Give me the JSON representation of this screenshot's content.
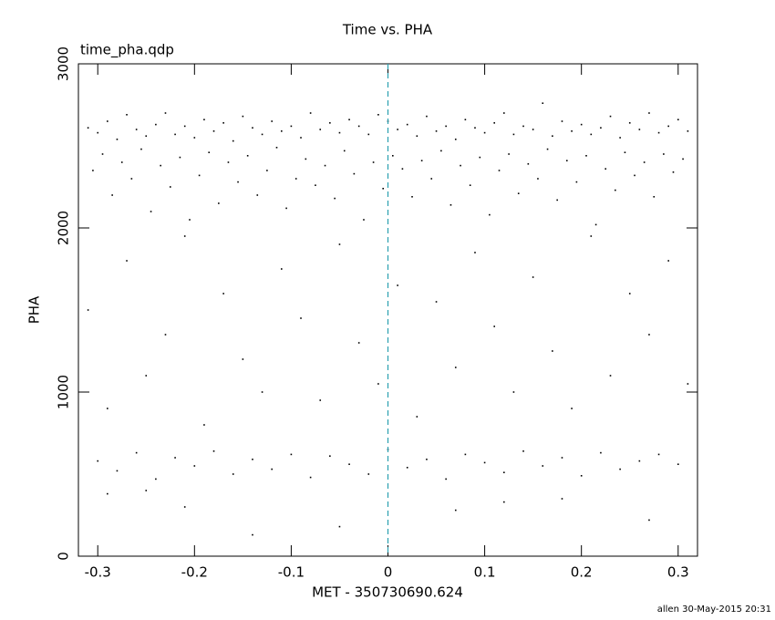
{
  "chart_data": {
    "type": "scatter",
    "title": "Time vs. PHA",
    "subtitle": "time_pha.qdp",
    "x_label": "MET - 350730690.624",
    "y_label": "PHA",
    "footer": "allen 30-May-2015 20:31",
    "xlim": [
      -0.32,
      0.32
    ],
    "xticks": [
      -0.3,
      -0.2,
      -0.1,
      0,
      0.1,
      0.2,
      0.3
    ],
    "ylim": [
      0,
      3000
    ],
    "yticks": [
      0,
      1000,
      2000,
      3000
    ],
    "color": "#000000",
    "vline": 0,
    "vline_color": "#2a9fb0",
    "x": [
      -0.31,
      -0.3,
      -0.29,
      -0.28,
      -0.27,
      -0.26,
      -0.25,
      -0.24,
      -0.23,
      -0.22,
      -0.21,
      -0.2,
      -0.19,
      -0.18,
      -0.17,
      -0.16,
      -0.15,
      -0.14,
      -0.13,
      -0.12,
      -0.11,
      -0.1,
      -0.09,
      -0.08,
      -0.07,
      -0.06,
      -0.05,
      -0.04,
      -0.03,
      -0.02,
      -0.01,
      0,
      0.01,
      0.02,
      0.03,
      0.04,
      0.05,
      0.06,
      0.07,
      0.08,
      0.09,
      0.1,
      0.11,
      0.12,
      0.13,
      0.14,
      0.15,
      0.16,
      0.17,
      0.18,
      0.19,
      0.2,
      0.21,
      0.22,
      0.23,
      0.24,
      0.25,
      0.26,
      0.27,
      0.28,
      0.29,
      0.3,
      0.31,
      -0.305,
      -0.295,
      -0.285,
      -0.275,
      -0.265,
      -0.255,
      -0.245,
      -0.235,
      -0.225,
      -0.215,
      -0.205,
      -0.195,
      -0.185,
      -0.175,
      -0.165,
      -0.155,
      -0.145,
      -0.135,
      -0.125,
      -0.115,
      -0.105,
      -0.095,
      -0.085,
      -0.075,
      -0.065,
      -0.055,
      -0.045,
      -0.035,
      -0.025,
      -0.015,
      -0.005,
      0.005,
      0.015,
      0.025,
      0.035,
      0.045,
      0.055,
      0.065,
      0.075,
      0.085,
      0.095,
      0.105,
      0.115,
      0.125,
      0.135,
      0.145,
      0.155,
      0.165,
      0.175,
      0.185,
      0.195,
      0.205,
      0.215,
      0.225,
      0.235,
      0.245,
      0.255,
      0.265,
      0.275,
      0.285,
      0.295,
      0.305,
      -0.31,
      -0.29,
      -0.27,
      -0.25,
      -0.23,
      -0.21,
      -0.19,
      -0.17,
      -0.15,
      -0.13,
      -0.11,
      -0.09,
      -0.07,
      -0.05,
      -0.03,
      -0.01,
      0.01,
      0.03,
      0.05,
      0.07,
      0.09,
      0.11,
      0.13,
      0.15,
      0.17,
      0.19,
      0.21,
      0.23,
      0.25,
      0.27,
      0.29,
      0.31,
      -0.3,
      -0.28,
      -0.26,
      -0.24,
      -0.22,
      -0.2,
      -0.18,
      -0.16,
      -0.14,
      -0.12,
      -0.1,
      -0.08,
      -0.06,
      -0.04,
      -0.02,
      0,
      0.02,
      0.04,
      0.06,
      0.08,
      0.1,
      0.12,
      0.14,
      0.16,
      0.18,
      0.2,
      0.22,
      0.24,
      0.26,
      0.28,
      0.3,
      -0.29,
      -0.21,
      -0.14,
      -0.05,
      0.07,
      0.18,
      0.27,
      -0.25,
      0.12
    ],
    "y": [
      2610,
      2580,
      2650,
      2540,
      2690,
      2600,
      2560,
      2630,
      2700,
      2570,
      2620,
      2550,
      2660,
      2590,
      2640,
      2530,
      2680,
      2610,
      2570,
      2650,
      2590,
      2620,
      2550,
      2700,
      2600,
      2640,
      2580,
      2660,
      2620,
      2570,
      2690,
      2650,
      2600,
      2630,
      2560,
      2680,
      2590,
      2620,
      2540,
      2660,
      2610,
      2580,
      2640,
      2700,
      2570,
      2620,
      2600,
      2760,
      2560,
      2650,
      2590,
      2630,
      2570,
      2610,
      2680,
      2550,
      2640,
      2600,
      2700,
      2580,
      2620,
      2660,
      2590,
      2350,
      2450,
      2200,
      2400,
      2300,
      2480,
      2100,
      2380,
      2250,
      2430,
      2050,
      2320,
      2460,
      2150,
      2400,
      2280,
      2440,
      2200,
      2350,
      2490,
      2120,
      2300,
      2420,
      2260,
      2380,
      2180,
      2470,
      2330,
      2050,
      2400,
      2240,
      2440,
      2360,
      2190,
      2410,
      2300,
      2470,
      2140,
      2380,
      2260,
      2430,
      2080,
      2350,
      2450,
      2210,
      2390,
      2300,
      2480,
      2170,
      2410,
      2280,
      2440,
      2020,
      2360,
      2230,
      2460,
      2320,
      2400,
      2190,
      2450,
      2340,
      2420,
      1500,
      900,
      1800,
      1100,
      1350,
      1950,
      800,
      1600,
      1200,
      1000,
      1750,
      1450,
      950,
      1900,
      1300,
      1050,
      1650,
      850,
      1550,
      1150,
      1850,
      1400,
      1000,
      1700,
      1250,
      900,
      1950,
      1100,
      1600,
      1350,
      1800,
      1050,
      580,
      520,
      630,
      470,
      600,
      550,
      640,
      500,
      590,
      530,
      620,
      480,
      610,
      560,
      500,
      650,
      540,
      590,
      470,
      620,
      570,
      510,
      640,
      550,
      600,
      490,
      630,
      530,
      580,
      620,
      560,
      380,
      300,
      130,
      180,
      280,
      350,
      220,
      400,
      330
    ]
  }
}
